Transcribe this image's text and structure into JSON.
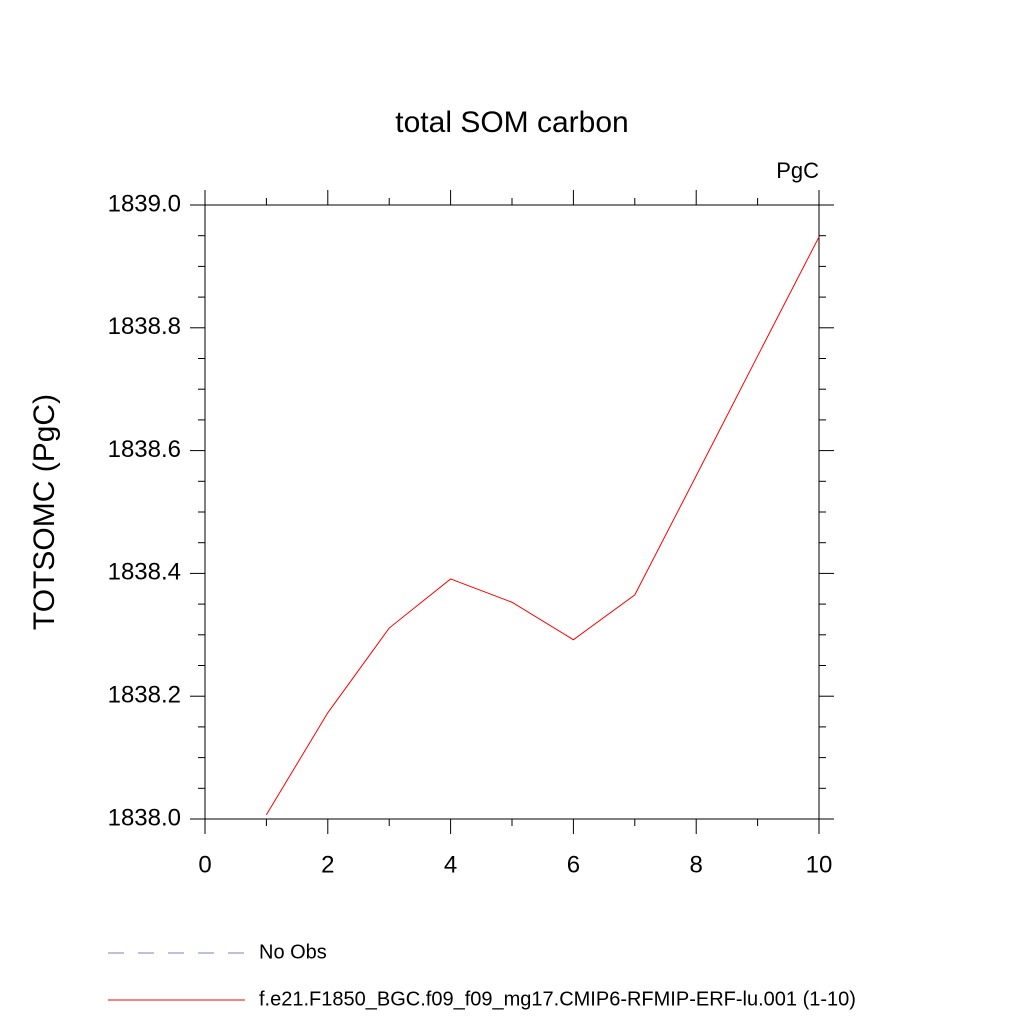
{
  "chart_data": {
    "type": "line",
    "title": "total SOM carbon",
    "units_label": "PgC",
    "y_label": "TOTSOMC  (PgC)",
    "x": [
      1,
      2,
      3,
      4,
      5,
      6,
      7,
      8,
      9,
      10
    ],
    "series": [
      {
        "name": "No Obs",
        "color": "#7f7fbf",
        "dash": true,
        "values": [
          null,
          null,
          null,
          null,
          null,
          null,
          null,
          null,
          null,
          null
        ]
      },
      {
        "name": "f.e21.F1850_BGC.f09_f09_mg17.CMIP6-RFMIP-ERF-lu.001 (1-10)",
        "color": "#ff0000",
        "dash": false,
        "values": [
          1838.007,
          1838.173,
          1838.311,
          1838.391,
          1838.353,
          1838.292,
          1838.365,
          1838.559,
          1838.754,
          1838.948
        ]
      }
    ],
    "xlim": [
      0,
      10
    ],
    "xticks": [
      0,
      2,
      4,
      6,
      8,
      10
    ],
    "ylim": [
      1838.0,
      1839.0
    ],
    "yticks": [
      {
        "value": 1838,
        "label": "1838.0"
      },
      1838.2,
      1838.4,
      1838.6,
      1838.8,
      {
        "value": 1839,
        "label": "1839.0"
      }
    ],
    "grid": false
  }
}
